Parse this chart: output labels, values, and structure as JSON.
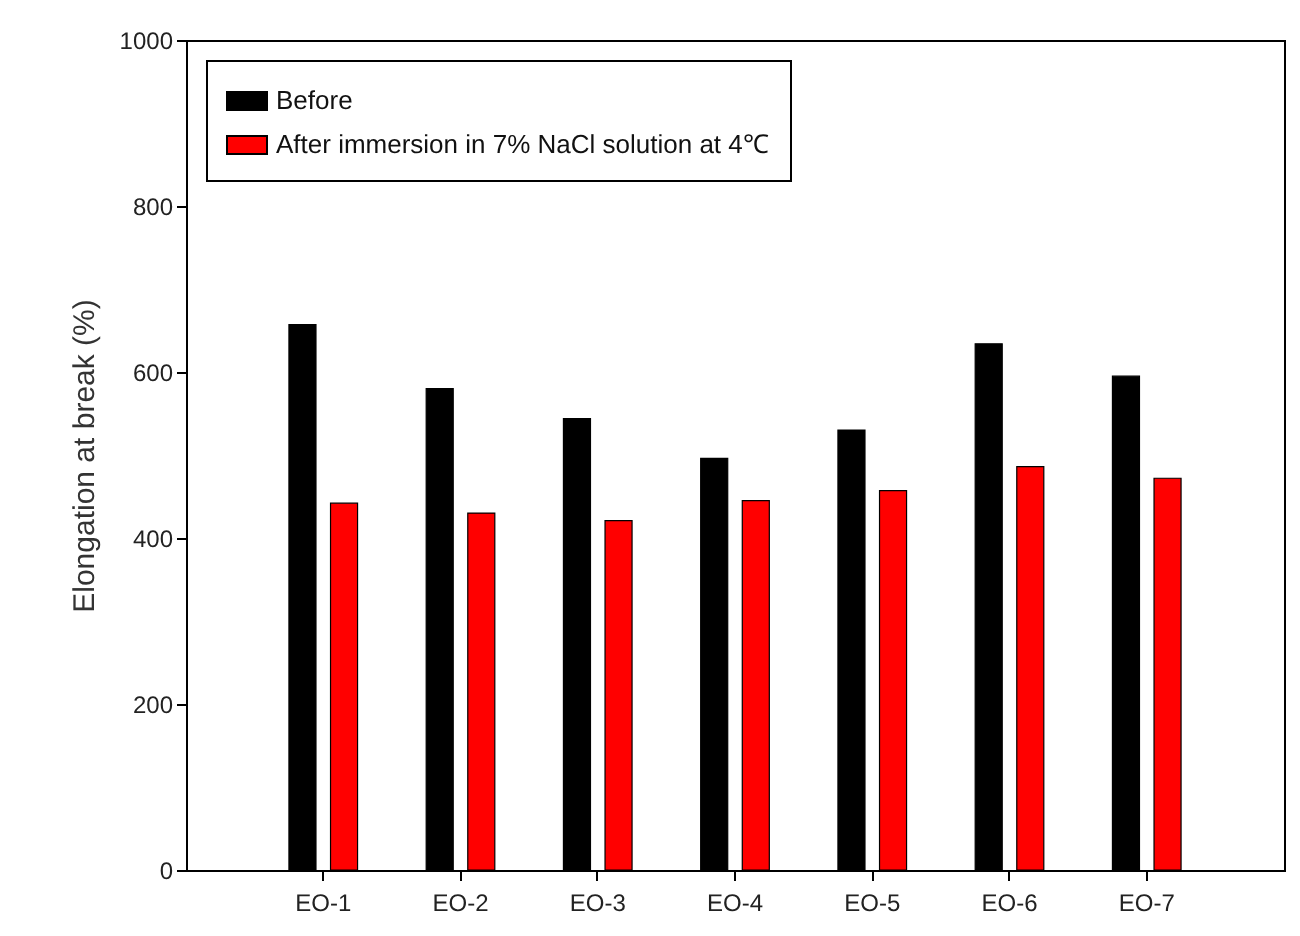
{
  "chart_data": {
    "type": "bar",
    "ylabel": "Elongation at break (%)",
    "categories": [
      "EO-1",
      "EO-2",
      "EO-3",
      "EO-4",
      "EO-5",
      "EO-6",
      "EO-7"
    ],
    "series": [
      {
        "name": "Before",
        "color": "#000000",
        "values": [
          657,
          580,
          544,
          496,
          530,
          634,
          595
        ]
      },
      {
        "name": "After immersion in 7% NaCl solution at 4℃",
        "color": "#ff0000",
        "values": [
          442,
          430,
          421,
          445,
          457,
          486,
          472
        ]
      }
    ],
    "ylim": [
      0,
      1000
    ],
    "yticks": [
      0,
      200,
      400,
      600,
      800,
      1000
    ],
    "grid": false,
    "legend": "top left"
  }
}
